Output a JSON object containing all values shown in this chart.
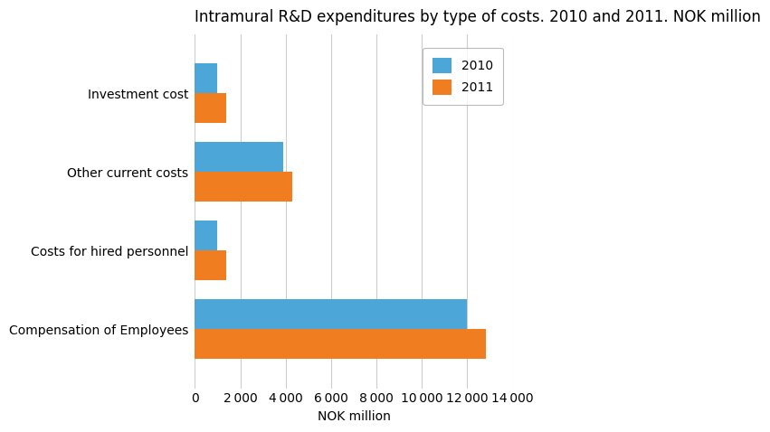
{
  "title": "Intramural R&D expenditures by type of costs. 2010 and 2011. NOK million",
  "categories": [
    "Compensation of Employees",
    "Costs for hired personnel",
    "Other current costs",
    "Investment cost"
  ],
  "values_2010": [
    12000,
    1000,
    3900,
    1000
  ],
  "values_2011": [
    12800,
    1400,
    4300,
    1400
  ],
  "color_2010": "#4da6d8",
  "color_2011": "#f07e20",
  "xlabel": "NOK million",
  "xlim": [
    0,
    14000
  ],
  "xticks": [
    0,
    2000,
    4000,
    6000,
    8000,
    10000,
    12000,
    14000
  ],
  "xtick_labels": [
    "0",
    "2 000",
    "4 000",
    "6 000",
    "8 000",
    "10 000",
    "12 000",
    "14 000"
  ],
  "legend_labels": [
    "2010",
    "2011"
  ],
  "bar_height": 0.38,
  "background_color": "#ffffff",
  "grid_color": "#cccccc",
  "title_fontsize": 12,
  "axis_fontsize": 10,
  "tick_fontsize": 10
}
